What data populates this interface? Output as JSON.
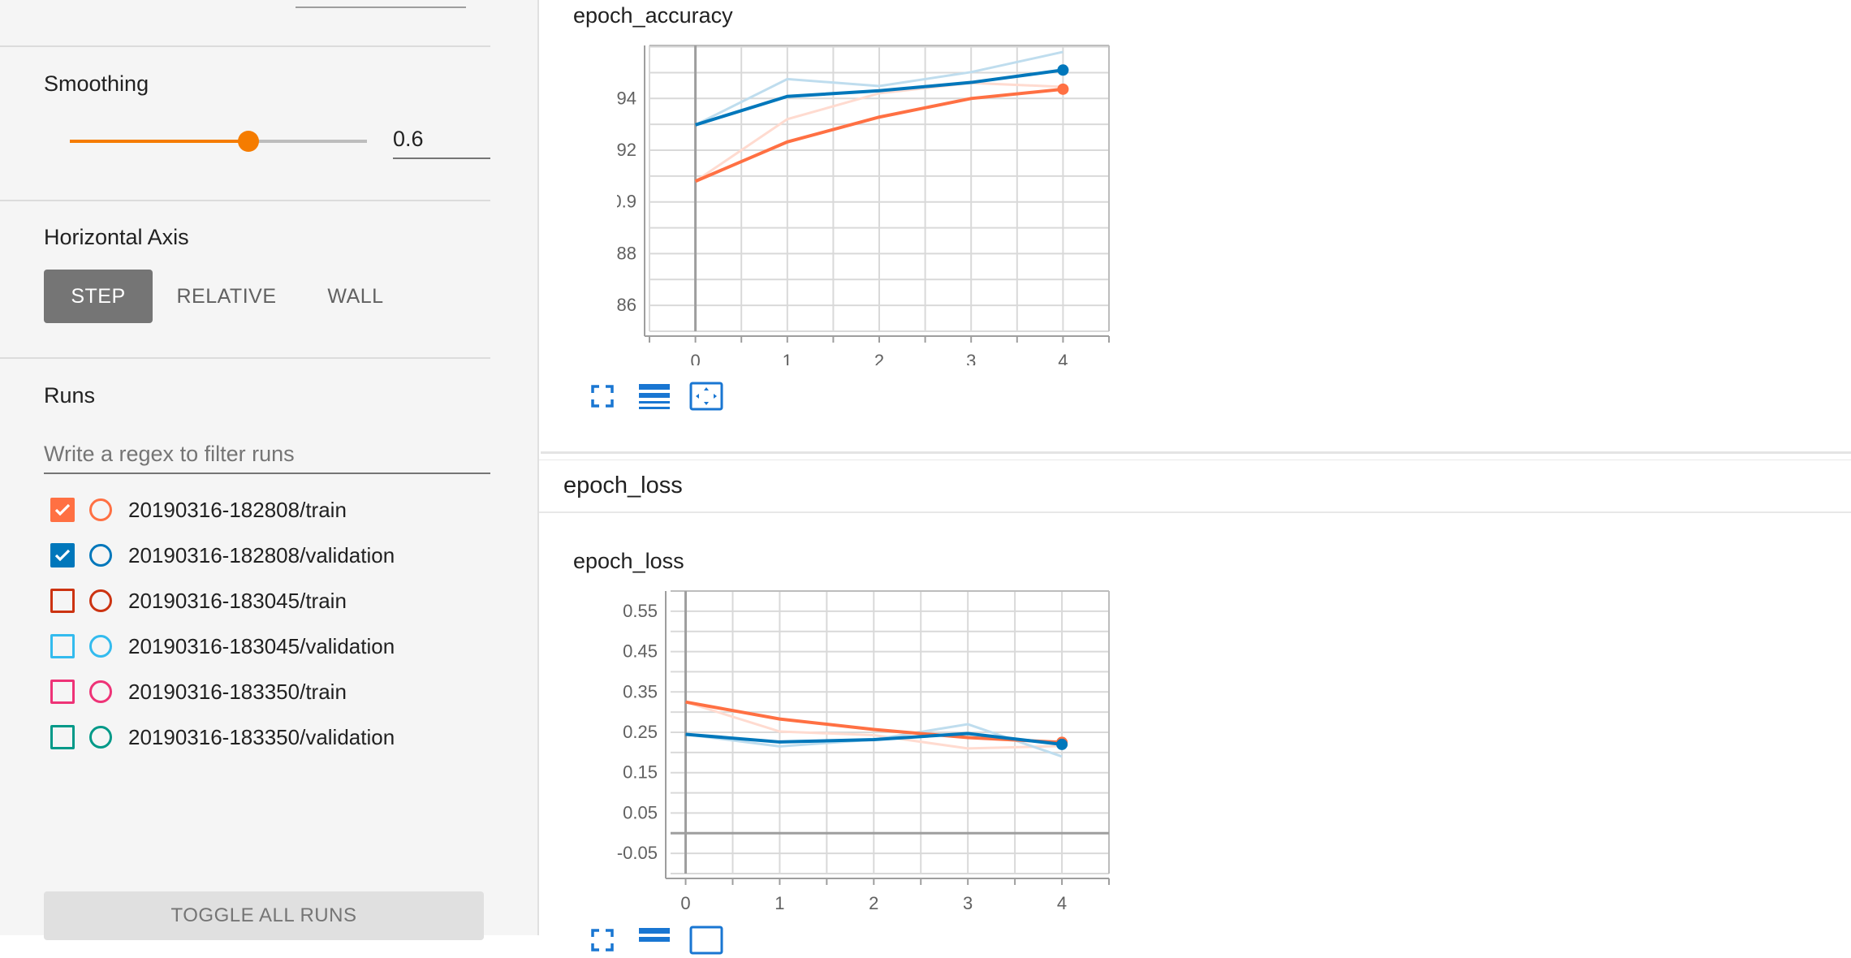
{
  "sidebar": {
    "smoothing": {
      "title": "Smoothing",
      "value": "0.6",
      "slider_fraction": 0.6,
      "accent": "#f57c00"
    },
    "horizontal_axis": {
      "title": "Horizontal Axis",
      "options": [
        "STEP",
        "RELATIVE",
        "WALL"
      ],
      "selected": "STEP"
    },
    "runs": {
      "title": "Runs",
      "filter_placeholder": "Write a regex to filter runs",
      "items": [
        {
          "label": "20190316-182808/train",
          "color": "#ff7043",
          "checked": true
        },
        {
          "label": "20190316-182808/validation",
          "color": "#0077bb",
          "checked": true
        },
        {
          "label": "20190316-183045/train",
          "color": "#cc3311",
          "checked": false
        },
        {
          "label": "20190316-183045/validation",
          "color": "#33bbee",
          "checked": false
        },
        {
          "label": "20190316-183350/train",
          "color": "#ee3377",
          "checked": false
        },
        {
          "label": "20190316-183350/validation",
          "color": "#009988",
          "checked": false
        }
      ],
      "toggle_all_label": "TOGGLE ALL RUNS"
    }
  },
  "main": {
    "accuracy_card": {
      "title": "epoch_accuracy"
    },
    "loss_group": {
      "title": "epoch_loss"
    },
    "loss_card": {
      "title": "epoch_loss"
    },
    "tool_icons": [
      "fullscreen-icon",
      "data-table-icon",
      "fit-domain-icon"
    ]
  },
  "chart_data": [
    {
      "type": "line",
      "title": "epoch_accuracy",
      "xlabel": "",
      "ylabel": "",
      "x": [
        0,
        1,
        2,
        3,
        4
      ],
      "xticks": [
        "0",
        "1",
        "2",
        "3",
        "4"
      ],
      "yticks": [
        "0.86",
        "0.88",
        "0.9",
        "0.92",
        "0.94"
      ],
      "ytick_values": [
        0.86,
        0.88,
        0.9,
        0.92,
        0.94
      ],
      "xlim": [
        -0.5,
        4.5
      ],
      "ylim": [
        0.85,
        0.9605
      ],
      "grid": true,
      "series": [
        {
          "name": "20190316-182808/train",
          "color": "#ff7043",
          "smoothed": [
            0.908,
            0.9232,
            0.9328,
            0.94,
            0.9436
          ],
          "raw": [
            0.908,
            0.932,
            0.942,
            0.946,
            0.9445
          ]
        },
        {
          "name": "20190316-182808/validation",
          "color": "#0077bb",
          "smoothed": [
            0.9298,
            0.9408,
            0.943,
            0.9462,
            0.951
          ],
          "raw": [
            0.9298,
            0.9475,
            0.9448,
            0.9502,
            0.958
          ]
        }
      ]
    },
    {
      "type": "line",
      "title": "epoch_loss",
      "xlabel": "",
      "ylabel": "",
      "x": [
        0,
        1,
        2,
        3,
        4
      ],
      "xticks": [
        "0",
        "1",
        "2",
        "3",
        "4"
      ],
      "yticks": [
        "-0.05",
        "0.05",
        "0.15",
        "0.25",
        "0.35",
        "0.45",
        "0.55"
      ],
      "ytick_values": [
        -0.05,
        0.05,
        0.15,
        0.25,
        0.35,
        0.45,
        0.55
      ],
      "xlim": [
        -0.16,
        4.5
      ],
      "ylim": [
        -0.1,
        0.6
      ],
      "grid": true,
      "series": [
        {
          "name": "20190316-182808/train",
          "color": "#ff7043",
          "smoothed": [
            0.325,
            0.283,
            0.257,
            0.237,
            0.225
          ],
          "raw": [
            0.325,
            0.252,
            0.243,
            0.21,
            0.216
          ]
        },
        {
          "name": "20190316-182808/validation",
          "color": "#0077bb",
          "smoothed": [
            0.245,
            0.226,
            0.232,
            0.247,
            0.22
          ],
          "raw": [
            0.245,
            0.215,
            0.232,
            0.27,
            0.19
          ]
        }
      ]
    }
  ]
}
